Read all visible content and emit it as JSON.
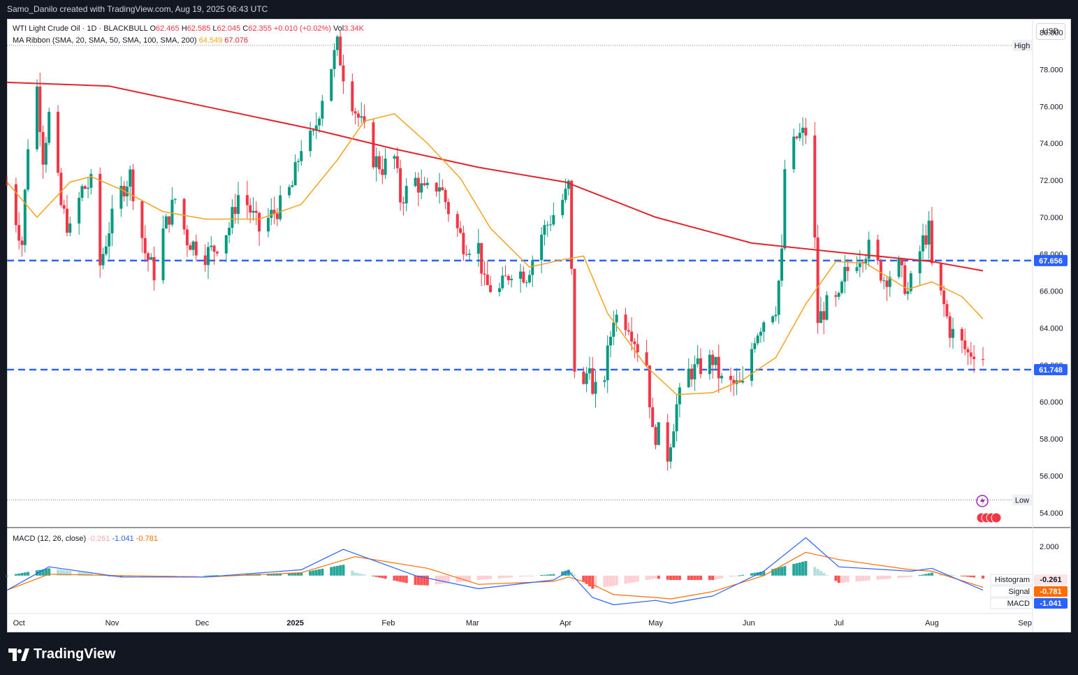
{
  "header": {
    "attribution": "Samo_Danilo created with TradingView.com, Aug 19, 2025 06:43 UTC"
  },
  "legend": {
    "symbol": "WTI Light Crude Oil · 1D · BLACKBULL",
    "o_label": "O",
    "o": "62.465",
    "h_label": "H",
    "h": "62.585",
    "l_label": "L",
    "l": "62.045",
    "c_label": "C",
    "c": "62.355",
    "change": "+0.010 (+0.02%)",
    "vol_label": "Vol",
    "vol": "3.34K",
    "ma_label": "MA Ribbon (SMA, 20, SMA, 50, SMA, 100, SMA, 200)",
    "ma1": "64.549",
    "ma2": "67.076",
    "macd_label": "MACD (12, 26, close)",
    "macd_hist": "-0.261",
    "macd_line": "-1.041",
    "macd_signal": "-0.781"
  },
  "currency": "USD",
  "footer": {
    "brand": "TradingView"
  },
  "colors": {
    "up": "#089981",
    "down": "#f23645",
    "ma20": "#f7a21b",
    "ma200": "#e3242b",
    "level": "#2962ff",
    "macd": "#2962ff",
    "signal": "#ff6d00"
  },
  "chart_data": {
    "type": "candlestick",
    "title": "WTI Light Crude Oil · 1D · BLACKBULL",
    "y_ticks": [
      "80.000",
      "78.000",
      "76.000",
      "74.000",
      "72.000",
      "70.000",
      "68.000",
      "66.000",
      "64.000",
      "62.000",
      "60.000",
      "58.000",
      "56.000",
      "54.000"
    ],
    "x_ticks": [
      "Oct",
      "Nov",
      "Dec",
      "2025",
      "Feb",
      "Mar",
      "Apr",
      "May",
      "Jun",
      "Jul",
      "Aug",
      "Sep"
    ],
    "ylim": [
      53.2,
      80.7
    ],
    "levels": [
      {
        "value": 67.656,
        "label": "67.656"
      },
      {
        "value": 61.748,
        "label": "61.748"
      }
    ],
    "high_marker": {
      "label": "High",
      "value": 79.3
    },
    "low_marker": {
      "label": "Low",
      "value": 54.7
    },
    "close_path": [
      [
        "2024-09-27",
        71.8
      ],
      [
        "2024-10-02",
        68.6
      ],
      [
        "2024-10-04",
        74.0
      ],
      [
        "2024-10-07",
        77.0
      ],
      [
        "2024-10-09",
        73.3
      ],
      [
        "2024-10-11",
        75.5
      ],
      [
        "2024-10-15",
        70.6
      ],
      [
        "2024-10-18",
        69.2
      ],
      [
        "2024-10-22",
        71.5
      ],
      [
        "2024-10-25",
        71.8
      ],
      [
        "2024-10-28",
        67.4
      ],
      [
        "2024-10-31",
        69.4
      ],
      [
        "2024-11-04",
        71.4
      ],
      [
        "2024-11-07",
        72.3
      ],
      [
        "2024-11-12",
        68.1
      ],
      [
        "2024-11-15",
        67.0
      ],
      [
        "2024-11-18",
        69.2
      ],
      [
        "2024-11-22",
        71.0
      ],
      [
        "2024-11-26",
        68.8
      ],
      [
        "2024-12-02",
        68.0
      ],
      [
        "2024-12-05",
        68.3
      ],
      [
        "2024-12-10",
        69.5
      ],
      [
        "2024-12-13",
        71.2
      ],
      [
        "2024-12-16",
        70.7
      ],
      [
        "2024-12-20",
        69.3
      ],
      [
        "2024-12-24",
        70.1
      ],
      [
        "2024-12-27",
        70.6
      ],
      [
        "2024-12-31",
        71.7
      ],
      [
        "2025-01-03",
        73.9
      ],
      [
        "2025-01-07",
        74.3
      ],
      [
        "2025-01-10",
        76.6
      ],
      [
        "2025-01-15",
        79.3
      ],
      [
        "2025-01-17",
        77.8
      ],
      [
        "2025-01-21",
        75.8
      ],
      [
        "2025-01-24",
        74.6
      ],
      [
        "2025-01-27",
        73.2
      ],
      [
        "2025-01-30",
        72.7
      ],
      [
        "2025-02-03",
        73.2
      ],
      [
        "2025-02-05",
        71.0
      ],
      [
        "2025-02-10",
        72.0
      ],
      [
        "2025-02-13",
        71.3
      ],
      [
        "2025-02-18",
        71.8
      ],
      [
        "2025-02-21",
        70.4
      ],
      [
        "2025-02-26",
        68.6
      ],
      [
        "2025-03-03",
        68.4
      ],
      [
        "2025-03-05",
        66.3
      ],
      [
        "2025-03-10",
        66.0
      ],
      [
        "2025-03-14",
        67.2
      ],
      [
        "2025-03-19",
        66.9
      ],
      [
        "2025-03-24",
        69.1
      ],
      [
        "2025-03-27",
        69.9
      ],
      [
        "2025-04-01",
        71.2
      ],
      [
        "2025-04-02",
        71.7
      ],
      [
        "2025-04-03",
        66.9
      ],
      [
        "2025-04-04",
        61.9
      ],
      [
        "2025-04-07",
        60.7
      ],
      [
        "2025-04-09",
        62.4
      ],
      [
        "2025-04-10",
        60.2
      ],
      [
        "2025-04-14",
        61.5
      ],
      [
        "2025-04-17",
        64.7
      ],
      [
        "2025-04-22",
        64.3
      ],
      [
        "2025-04-25",
        63.0
      ],
      [
        "2025-04-28",
        62.1
      ],
      [
        "2025-04-30",
        58.2
      ],
      [
        "2025-05-02",
        58.3
      ],
      [
        "2025-05-05",
        57.1
      ],
      [
        "2025-05-08",
        59.8
      ],
      [
        "2025-05-12",
        61.6
      ],
      [
        "2025-05-15",
        61.8
      ],
      [
        "2025-05-20",
        62.3
      ],
      [
        "2025-05-23",
        61.1
      ],
      [
        "2025-05-27",
        60.9
      ],
      [
        "2025-05-30",
        60.8
      ],
      [
        "2025-06-03",
        63.6
      ],
      [
        "2025-06-06",
        64.5
      ],
      [
        "2025-06-10",
        65.2
      ],
      [
        "2025-06-12",
        67.9
      ],
      [
        "2025-06-13",
        72.6
      ],
      [
        "2025-06-17",
        74.3
      ],
      [
        "2025-06-20",
        74.6
      ],
      [
        "2025-06-23",
        68.6
      ],
      [
        "2025-06-24",
        64.4
      ],
      [
        "2025-06-27",
        65.2
      ],
      [
        "2025-07-01",
        65.4
      ],
      [
        "2025-07-03",
        66.9
      ],
      [
        "2025-07-08",
        68.0
      ],
      [
        "2025-07-11",
        68.3
      ],
      [
        "2025-07-16",
        66.7
      ],
      [
        "2025-07-21",
        67.3
      ],
      [
        "2025-07-24",
        65.9
      ],
      [
        "2025-07-29",
        68.7
      ],
      [
        "2025-07-31",
        69.3
      ],
      [
        "2025-08-01",
        67.3
      ],
      [
        "2025-08-05",
        65.2
      ],
      [
        "2025-08-07",
        63.9
      ],
      [
        "2025-08-11",
        63.1
      ],
      [
        "2025-08-13",
        62.6
      ],
      [
        "2025-08-15",
        62.8
      ],
      [
        "2025-08-18",
        62.4
      ]
    ],
    "ma20": [
      [
        "2024-09-27",
        71.9
      ],
      [
        "2024-10-07",
        70.0
      ],
      [
        "2024-10-18",
        71.9
      ],
      [
        "2024-10-25",
        72.2
      ],
      [
        "2024-11-04",
        71.5
      ],
      [
        "2024-11-18",
        70.3
      ],
      [
        "2024-12-02",
        69.9
      ],
      [
        "2024-12-20",
        69.9
      ],
      [
        "2025-01-03",
        70.7
      ],
      [
        "2025-01-15",
        73.1
      ],
      [
        "2025-01-24",
        75.2
      ],
      [
        "2025-02-03",
        75.6
      ],
      [
        "2025-02-14",
        74.0
      ],
      [
        "2025-02-25",
        72.1
      ],
      [
        "2025-03-07",
        69.4
      ],
      [
        "2025-03-20",
        67.3
      ],
      [
        "2025-03-31",
        67.7
      ],
      [
        "2025-04-07",
        67.9
      ],
      [
        "2025-04-15",
        64.8
      ],
      [
        "2025-04-28",
        61.9
      ],
      [
        "2025-05-08",
        60.4
      ],
      [
        "2025-05-20",
        60.5
      ],
      [
        "2025-05-30",
        61.2
      ],
      [
        "2025-06-10",
        62.4
      ],
      [
        "2025-06-20",
        65.3
      ],
      [
        "2025-06-30",
        67.6
      ],
      [
        "2025-07-10",
        67.5
      ],
      [
        "2025-07-24",
        66.1
      ],
      [
        "2025-08-01",
        66.5
      ],
      [
        "2025-08-11",
        65.7
      ],
      [
        "2025-08-18",
        64.5
      ]
    ],
    "ma200": [
      [
        "2024-09-27",
        77.3
      ],
      [
        "2024-10-31",
        77.1
      ],
      [
        "2024-12-02",
        76.0
      ],
      [
        "2025-01-06",
        74.8
      ],
      [
        "2025-02-03",
        73.7
      ],
      [
        "2025-03-03",
        72.7
      ],
      [
        "2025-04-01",
        71.9
      ],
      [
        "2025-05-01",
        70.0
      ],
      [
        "2025-06-02",
        68.6
      ],
      [
        "2025-07-01",
        68.1
      ],
      [
        "2025-08-01",
        67.6
      ],
      [
        "2025-08-18",
        67.1
      ]
    ],
    "macd": {
      "ticks": [
        "2.000"
      ],
      "line": [
        [
          "2024-09-27",
          -1.0
        ],
        [
          "2024-10-11",
          0.6
        ],
        [
          "2024-11-04",
          -0.1
        ],
        [
          "2024-12-02",
          -0.1
        ],
        [
          "2025-01-03",
          0.4
        ],
        [
          "2025-01-17",
          1.8
        ],
        [
          "2025-02-10",
          0.0
        ],
        [
          "2025-03-03",
          -0.9
        ],
        [
          "2025-03-28",
          -0.3
        ],
        [
          "2025-04-02",
          0.3
        ],
        [
          "2025-04-10",
          -1.5
        ],
        [
          "2025-04-17",
          -2.0
        ],
        [
          "2025-05-01",
          -1.7
        ],
        [
          "2025-05-06",
          -1.9
        ],
        [
          "2025-05-20",
          -1.4
        ],
        [
          "2025-06-06",
          0.3
        ],
        [
          "2025-06-20",
          2.6
        ],
        [
          "2025-07-01",
          0.6
        ],
        [
          "2025-07-25",
          0.3
        ],
        [
          "2025-08-01",
          0.5
        ],
        [
          "2025-08-18",
          -1.0
        ]
      ],
      "signal": [
        [
          "2024-09-27",
          -1.0
        ],
        [
          "2024-10-11",
          0.1
        ],
        [
          "2024-11-04",
          0.0
        ],
        [
          "2024-12-02",
          -0.1
        ],
        [
          "2025-01-03",
          0.2
        ],
        [
          "2025-01-21",
          1.3
        ],
        [
          "2025-02-14",
          0.5
        ],
        [
          "2025-03-03",
          -0.6
        ],
        [
          "2025-03-28",
          -0.4
        ],
        [
          "2025-04-02",
          -0.1
        ],
        [
          "2025-04-10",
          -0.6
        ],
        [
          "2025-04-17",
          -1.3
        ],
        [
          "2025-05-01",
          -1.5
        ],
        [
          "2025-05-06",
          -1.6
        ],
        [
          "2025-05-20",
          -1.1
        ],
        [
          "2025-06-06",
          0.0
        ],
        [
          "2025-06-20",
          1.6
        ],
        [
          "2025-07-01",
          1.1
        ],
        [
          "2025-07-25",
          0.4
        ],
        [
          "2025-08-01",
          0.3
        ],
        [
          "2025-08-18",
          -0.8
        ]
      ],
      "ylim": [
        -2.6,
        3.2
      ]
    },
    "markers": [
      {
        "label": "Histogram",
        "value": "-0.261"
      },
      {
        "label": "Signal",
        "value": "-0.781"
      },
      {
        "label": "MACD",
        "value": "-1.041"
      }
    ]
  }
}
